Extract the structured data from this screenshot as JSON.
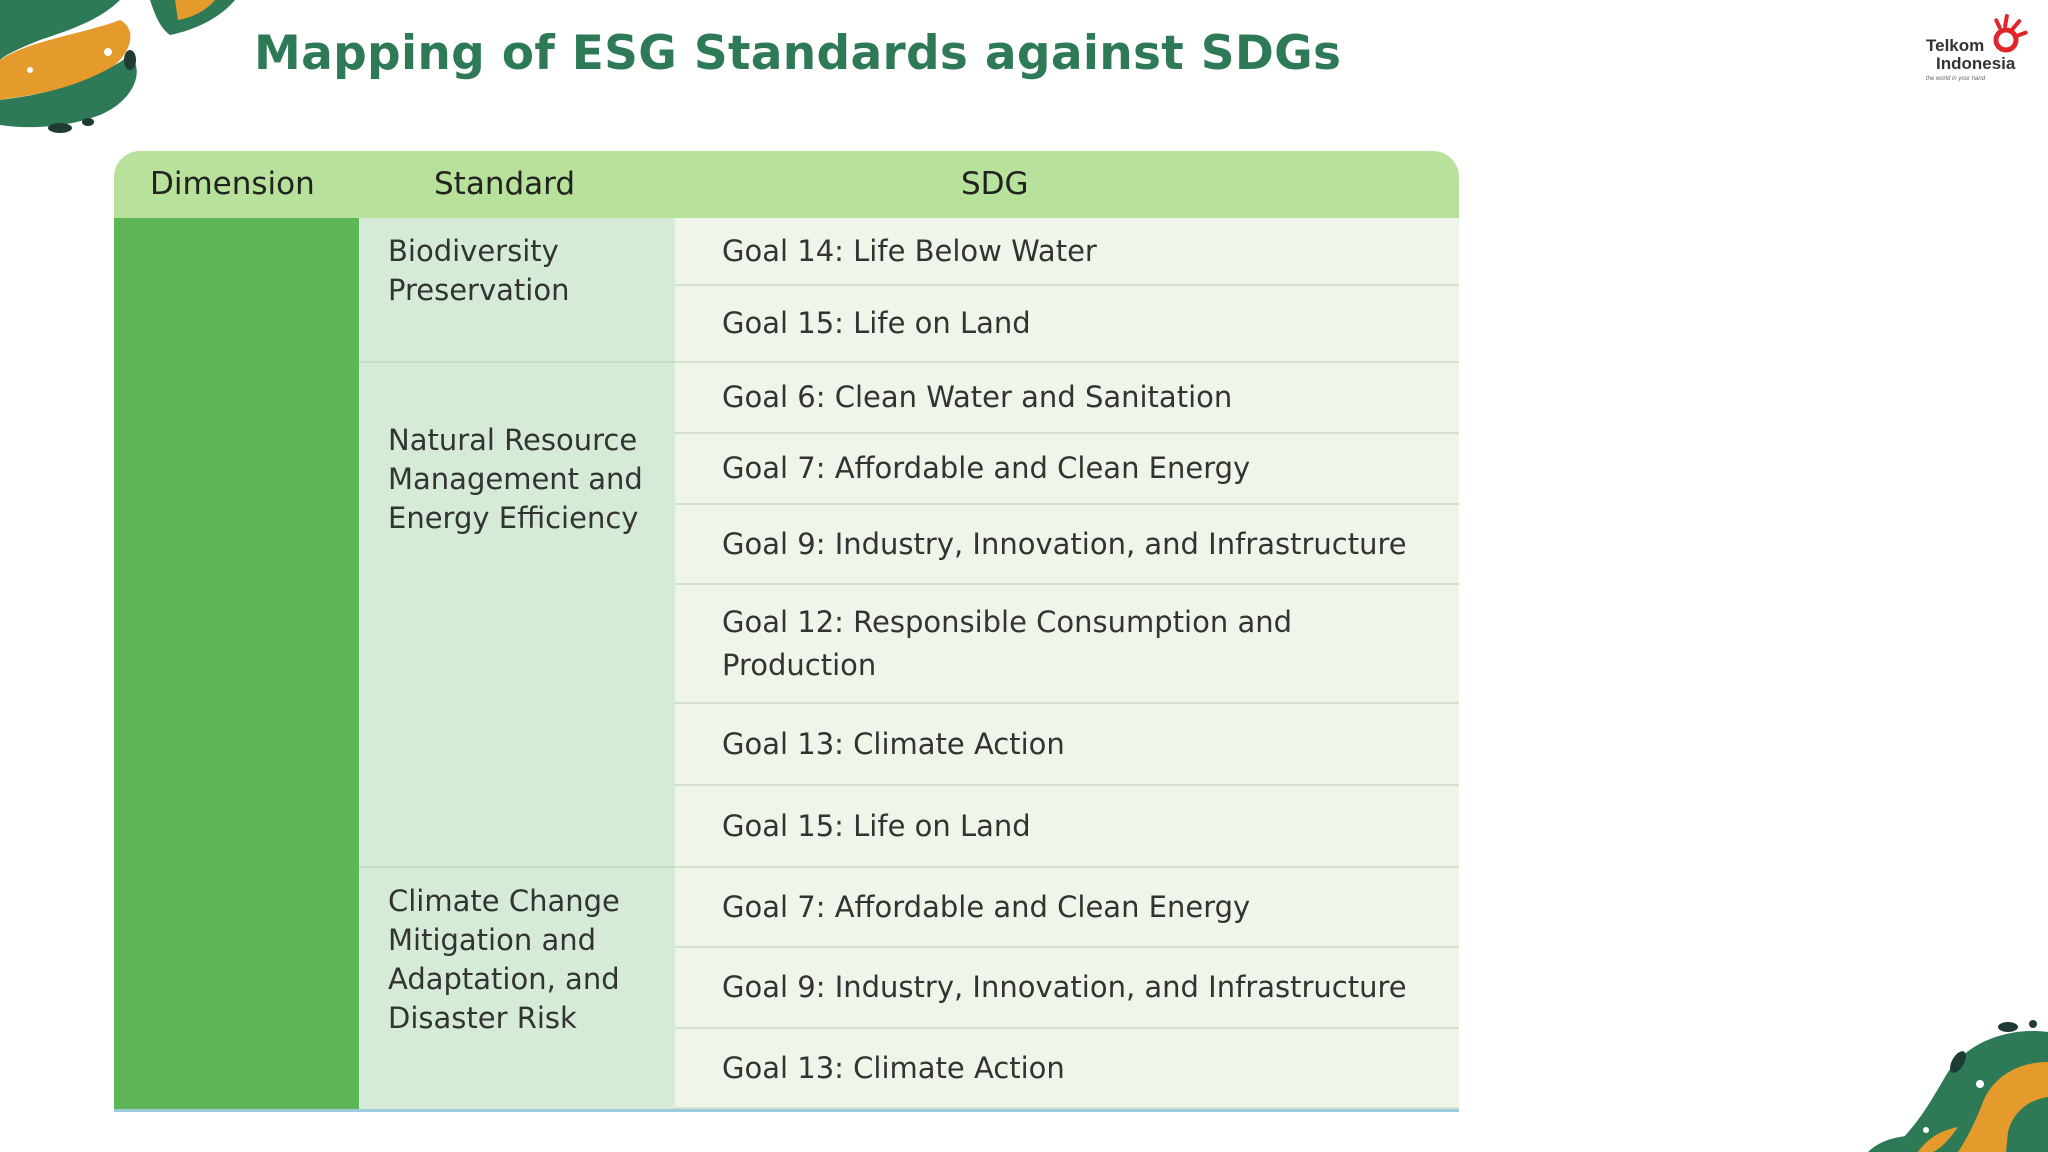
{
  "title": "Mapping of ESG Standards against SDGs",
  "logo": {
    "line1": "Telkom",
    "line2": "Indonesia",
    "tagline": "the world in your hand"
  },
  "table": {
    "headers": {
      "dimension": "Dimension",
      "standard": "Standard",
      "sdg": "SDG"
    },
    "standards": [
      "Biodiversity Preservation",
      "Natural Resource Management and Energy Efficiency",
      "Climate Change Mitigation and Adaptation, and Disaster Risk"
    ],
    "sdgs": [
      "Goal 14: Life Below Water",
      "Goal 15: Life on Land",
      "Goal 6: Clean Water and Sanitation",
      "Goal 7: Affordable and Clean Energy",
      "Goal 9: Industry, Innovation, and Infrastructure",
      "Goal 12: Responsible Consumption and Production",
      "Goal 13: Climate Action",
      "Goal 15: Life on Land",
      "Goal 7: Affordable and Clean Energy",
      "Goal 9: Industry, Innovation, and Infrastructure",
      "Goal 13: Climate Action"
    ]
  },
  "colors": {
    "title": "#2e7a57",
    "header": "#b8e29b",
    "dimension": "#5db555",
    "standard": "#d6ebd7",
    "sdg": "#eff6e9"
  }
}
